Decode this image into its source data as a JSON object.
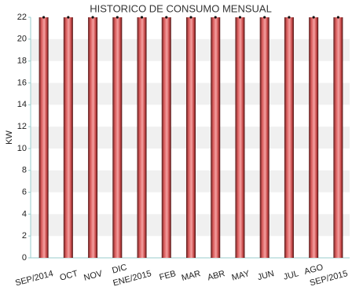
{
  "chart_data": {
    "type": "bar",
    "title": "HISTORICO DE CONSUMO MENSUAL",
    "y_label": "KW",
    "categories": [
      "SEP/2014",
      "OCT",
      "NOV",
      "DIC",
      "ENE/2015",
      "FEB",
      "MAR",
      "ABR",
      "MAY",
      "JUN",
      "JUL",
      "AGO",
      "SEP/2015"
    ],
    "values": [
      22,
      22,
      22,
      22,
      22,
      22,
      22,
      22,
      22,
      22,
      22,
      22,
      22
    ],
    "color": "#e06060",
    "ylim": [
      0,
      22
    ],
    "yticks": [
      0,
      2,
      4,
      6,
      8,
      10,
      12,
      14,
      16,
      18,
      20,
      22
    ],
    "grid": true
  }
}
